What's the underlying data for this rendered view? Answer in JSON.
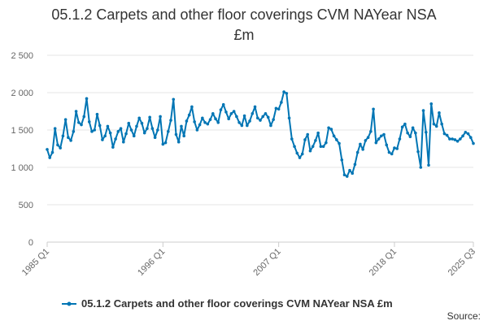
{
  "title_line1": "05.1.2 Carpets and other floor coverings CVM NAYear NSA",
  "title_line2": "£m",
  "credit": "Source:",
  "colors": {
    "series": "#0075b4",
    "grid": "#e6e6e6",
    "axis": "#cccccc"
  },
  "chart_data": {
    "type": "line",
    "title": "05.1.2 Carpets and other floor coverings CVM NAYear NSA £m",
    "xlabel": "",
    "ylabel": "",
    "x_start": "1985 Q1",
    "x_end": "2025 Q3",
    "x_ticks": [
      {
        "label": "1985 Q1",
        "index": 0
      },
      {
        "label": "1996 Q1",
        "index": 44
      },
      {
        "label": "2007 Q1",
        "index": 88
      },
      {
        "label": "2018 Q1",
        "index": 132
      },
      {
        "label": "2025 Q3",
        "index": 162
      }
    ],
    "y_ticks": [
      {
        "label": "0",
        "value": 0
      },
      {
        "label": "500",
        "value": 500
      },
      {
        "label": "1 000",
        "value": 1000
      },
      {
        "label": "1 500",
        "value": 1500
      },
      {
        "label": "2 000",
        "value": 2000
      },
      {
        "label": "2 500",
        "value": 2500
      }
    ],
    "ylim": [
      0,
      2500
    ],
    "legend": "bottom-center",
    "series": [
      {
        "name": "05.1.2 Carpets and other floor coverings CVM NAYear NSA £m",
        "values": [
          1240,
          1130,
          1200,
          1520,
          1300,
          1260,
          1420,
          1640,
          1400,
          1360,
          1480,
          1750,
          1600,
          1570,
          1680,
          1920,
          1610,
          1480,
          1500,
          1710,
          1560,
          1370,
          1420,
          1550,
          1460,
          1270,
          1380,
          1480,
          1520,
          1340,
          1450,
          1590,
          1500,
          1420,
          1550,
          1660,
          1590,
          1460,
          1520,
          1670,
          1520,
          1400,
          1500,
          1680,
          1310,
          1330,
          1480,
          1630,
          1910,
          1440,
          1340,
          1550,
          1420,
          1620,
          1700,
          1810,
          1610,
          1500,
          1570,
          1660,
          1600,
          1580,
          1640,
          1720,
          1650,
          1600,
          1770,
          1840,
          1740,
          1650,
          1720,
          1750,
          1680,
          1600,
          1560,
          1690,
          1560,
          1620,
          1720,
          1810,
          1660,
          1630,
          1680,
          1720,
          1670,
          1560,
          1640,
          1790,
          1780,
          1870,
          2010,
          1990,
          1660,
          1380,
          1280,
          1190,
          1130,
          1180,
          1370,
          1440,
          1220,
          1280,
          1360,
          1460,
          1280,
          1280,
          1330,
          1530,
          1510,
          1420,
          1370,
          1320,
          1100,
          900,
          880,
          960,
          920,
          1040,
          1200,
          1310,
          1240,
          1360,
          1400,
          1480,
          1780,
          1330,
          1380,
          1420,
          1440,
          1300,
          1200,
          1180,
          1260,
          1250,
          1380,
          1540,
          1580,
          1460,
          1410,
          1530,
          1460,
          1210,
          1000,
          1760,
          1470,
          1030,
          1850,
          1580,
          1550,
          1730,
          1580,
          1450,
          1430,
          1380,
          1380,
          1370,
          1350,
          1380,
          1420,
          1470,
          1450,
          1400,
          1320
        ]
      }
    ]
  }
}
